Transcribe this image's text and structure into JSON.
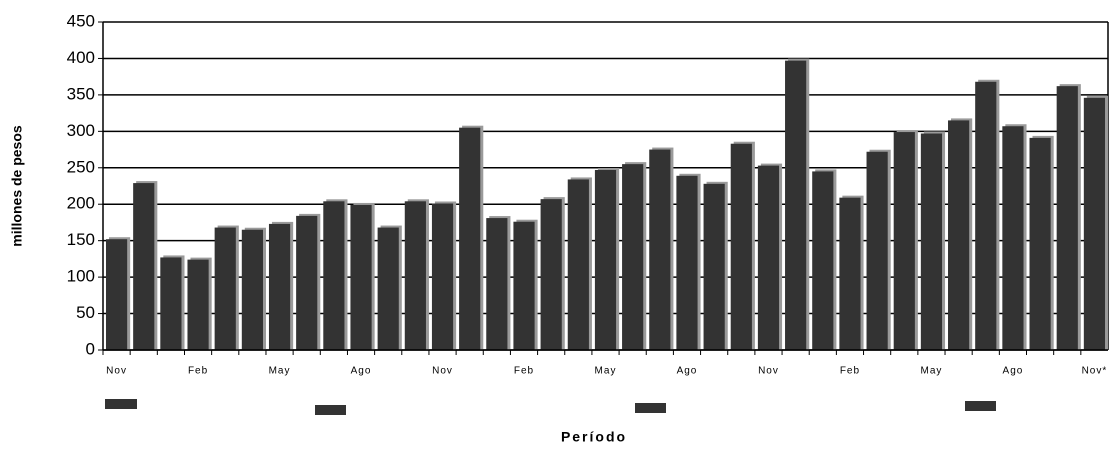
{
  "chart_data": {
    "type": "bar",
    "y_label": "millones de pesos",
    "x_label": "Período",
    "categories": [
      "Nov",
      null,
      null,
      "Feb",
      null,
      null,
      "May",
      null,
      null,
      "Ago",
      null,
      null,
      "Nov",
      null,
      null,
      "Feb",
      null,
      null,
      "May",
      null,
      null,
      "Ago",
      null,
      null,
      "Nov",
      null,
      null,
      "Feb",
      null,
      null,
      "May",
      null,
      null,
      "Ago",
      null,
      null,
      "Nov*"
    ],
    "values": [
      152,
      229,
      127,
      124,
      168,
      165,
      173,
      184,
      204,
      199,
      168,
      204,
      201,
      305,
      181,
      176,
      207,
      234,
      247,
      255,
      275,
      239,
      228,
      283,
      253,
      397,
      245,
      209,
      272,
      299,
      297,
      315,
      368,
      307,
      291,
      362,
      346
    ],
    "color": "#333333",
    "ylim": [
      0,
      450
    ],
    "yticks": [
      0,
      50,
      100,
      150,
      200,
      250,
      300,
      350,
      400,
      450
    ],
    "grid": true
  }
}
